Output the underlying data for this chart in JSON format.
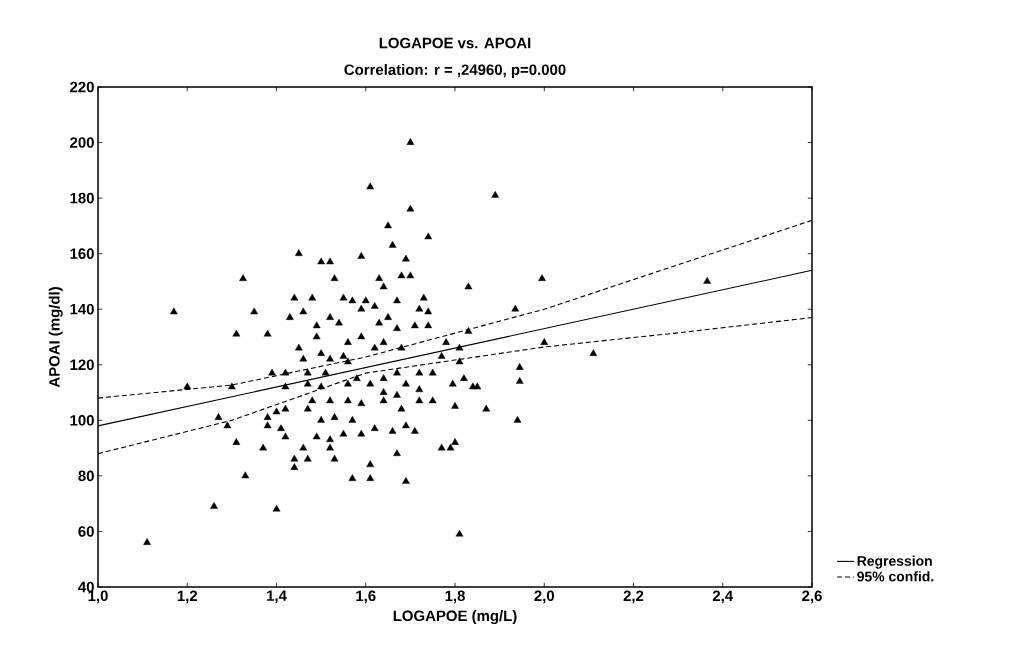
{
  "chart_data": {
    "type": "scatter",
    "title": "LOGAPOE vs. APOAI",
    "subtitle": "Correlation: r = ,24960, p=0.000",
    "xlabel": "LOGAPOE (mg/L)",
    "ylabel": "APOAI (mg/dl)",
    "xlim": [
      1.0,
      2.6
    ],
    "ylim": [
      40,
      220
    ],
    "xticks": [
      {
        "value": 1.0,
        "label": "1,0"
      },
      {
        "value": 1.2,
        "label": "1,2"
      },
      {
        "value": 1.4,
        "label": "1,4"
      },
      {
        "value": 1.6,
        "label": "1,6"
      },
      {
        "value": 1.8,
        "label": "1,8"
      },
      {
        "value": 2.0,
        "label": "2,0"
      },
      {
        "value": 2.2,
        "label": "2,2"
      },
      {
        "value": 2.4,
        "label": "2,4"
      },
      {
        "value": 2.6,
        "label": "2,6"
      }
    ],
    "yticks": [
      40,
      60,
      80,
      100,
      120,
      140,
      160,
      180,
      200,
      220
    ],
    "grid": false,
    "legend": "bottom right",
    "series": [
      {
        "color": "#000000",
        "marker": "triangle",
        "x": [
          1.11,
          1.17,
          1.2,
          1.26,
          1.325,
          1.35,
          1.31,
          1.38,
          1.3,
          1.27,
          1.29,
          1.31,
          1.33,
          1.4,
          1.45,
          1.5,
          1.52,
          1.53,
          1.59,
          1.61,
          1.7,
          1.7,
          1.65,
          1.66,
          1.74,
          1.69,
          1.68,
          1.7,
          1.63,
          1.64,
          1.44,
          1.48,
          1.43,
          1.46,
          1.55,
          1.57,
          1.6,
          1.59,
          1.62,
          1.67,
          1.73,
          1.72,
          1.74,
          1.49,
          1.52,
          1.54,
          1.63,
          1.65,
          1.67,
          1.71,
          1.74,
          1.49,
          1.56,
          1.59,
          1.62,
          1.64,
          1.68,
          1.45,
          1.46,
          1.5,
          1.52,
          1.55,
          1.56,
          1.39,
          1.42,
          1.47,
          1.51,
          1.58,
          1.64,
          1.67,
          1.72,
          1.75,
          1.42,
          1.47,
          1.5,
          1.56,
          1.61,
          1.64,
          1.69,
          1.72,
          1.48,
          1.52,
          1.56,
          1.59,
          1.64,
          1.67,
          1.72,
          1.75,
          1.38,
          1.4,
          1.42,
          1.47,
          1.5,
          1.53,
          1.57,
          1.68,
          1.38,
          1.41,
          1.42,
          1.62,
          1.66,
          1.69,
          1.59,
          1.71,
          1.37,
          1.49,
          1.52,
          1.55,
          1.52,
          1.44,
          1.46,
          1.47,
          1.53,
          1.67,
          1.61,
          1.44,
          1.57,
          1.61,
          1.69,
          1.79,
          1.77,
          1.89,
          1.83,
          1.995,
          2.365,
          1.935,
          1.83,
          1.78,
          1.81,
          2.0,
          2.11,
          1.77,
          1.81,
          1.945,
          1.945,
          1.82,
          1.84,
          1.85,
          1.795,
          1.8,
          1.87,
          1.94,
          1.8,
          1.81
        ],
        "values": [
          56,
          139,
          112,
          69,
          151,
          139,
          131,
          131,
          112,
          101,
          98,
          92,
          80,
          68,
          160,
          157,
          157,
          151,
          159,
          184,
          200,
          176,
          170,
          163,
          166,
          158,
          152,
          152,
          151,
          148,
          144,
          144,
          137,
          139,
          144,
          143,
          143,
          140,
          141,
          143,
          144,
          140,
          139,
          134,
          137,
          135,
          135,
          137,
          133,
          134,
          134,
          130,
          128,
          130,
          126,
          128,
          126,
          126,
          122,
          124,
          122,
          123,
          121,
          117,
          117,
          117,
          117,
          115,
          115,
          117,
          117,
          117,
          112,
          113,
          112,
          113,
          113,
          110,
          113,
          111,
          107,
          107,
          107,
          106,
          107,
          109,
          107,
          107,
          101,
          103,
          104,
          104,
          100,
          101,
          100,
          104,
          98,
          97,
          94,
          97,
          96,
          98,
          95,
          96,
          90,
          94,
          93,
          95,
          90,
          86,
          90,
          86,
          86,
          88,
          84,
          83,
          79,
          79,
          78,
          90,
          90,
          181,
          148,
          151,
          150,
          140,
          132,
          128,
          126,
          128,
          124,
          123,
          121,
          119,
          114,
          115,
          112,
          112,
          113,
          105,
          104,
          100,
          92,
          59
        ]
      },
      {
        "type": "line",
        "name": "Regression",
        "color": "#000000",
        "line_style": "solid",
        "x": [
          1.0,
          2.6
        ],
        "values": [
          98,
          154
        ]
      },
      {
        "type": "line",
        "name": "95% confid.",
        "color": "#000000",
        "line_style": "dashed",
        "x": [
          1.0,
          1.3,
          1.6,
          2.0,
          2.3,
          2.6
        ],
        "values": [
          108,
          112.7,
          122.8,
          140,
          156,
          172
        ]
      },
      {
        "type": "line",
        "color": "#000000",
        "line_style": "dashed",
        "x": [
          1.0,
          1.3,
          1.6,
          2.0,
          2.3,
          2.6
        ],
        "values": [
          88,
          100,
          117,
          126.4,
          131.5,
          137
        ]
      }
    ]
  }
}
